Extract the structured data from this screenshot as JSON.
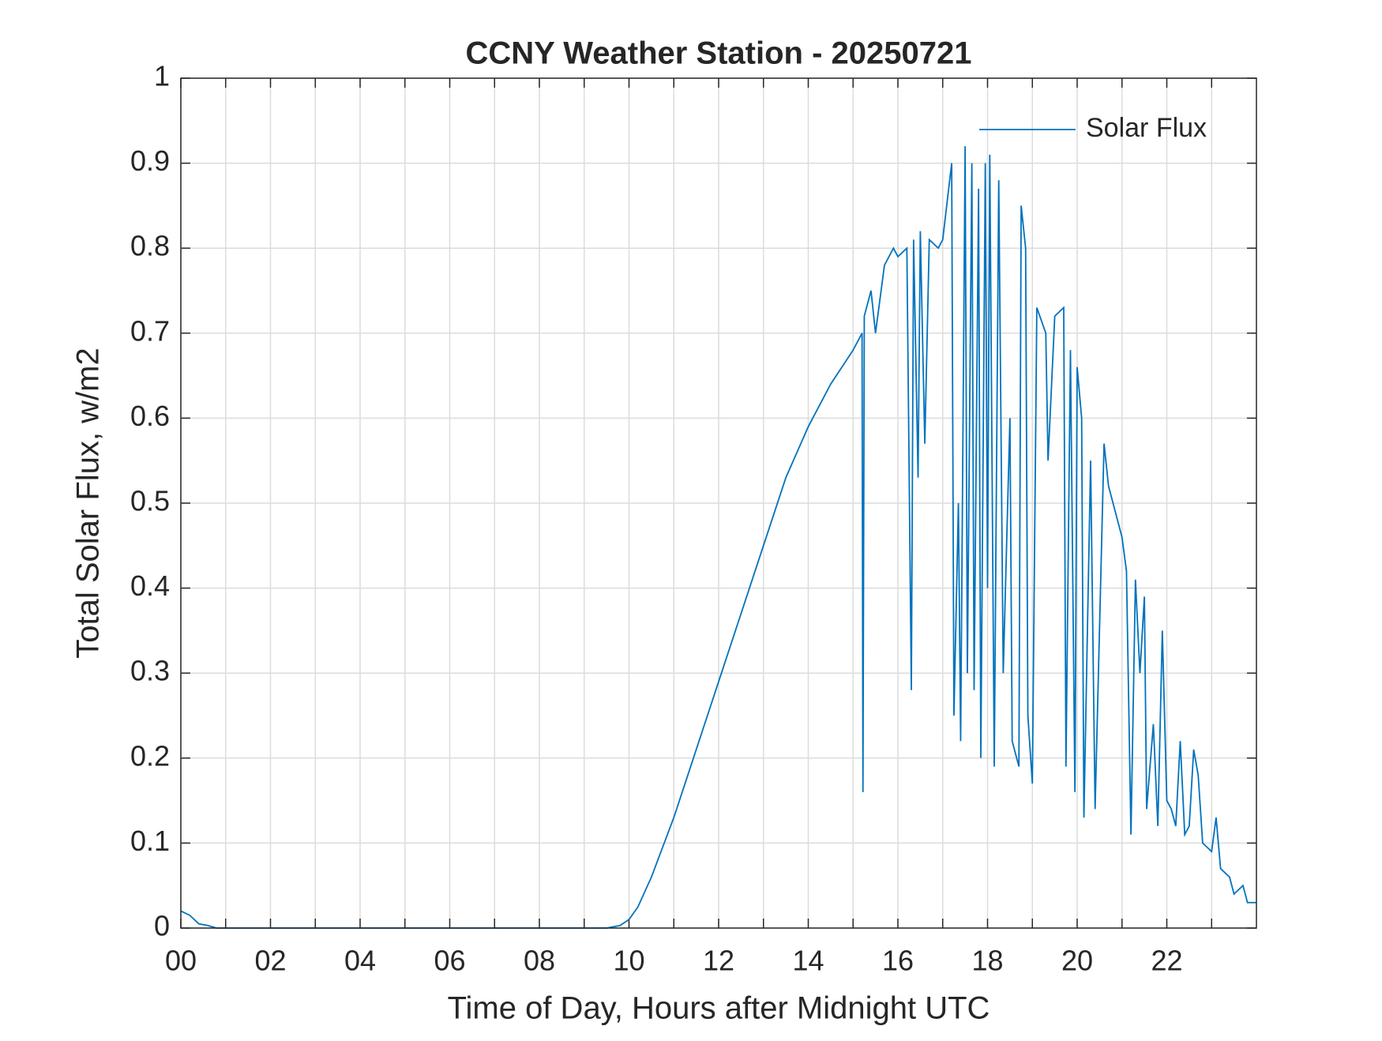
{
  "chart_data": {
    "type": "line",
    "title": "CCNY Weather Station - 20250721",
    "x_label": "Time of Day, Hours after Midnight UTC",
    "y_label": "Total Solar Flux, w/m2",
    "xlim": [
      0,
      24
    ],
    "xticks": [
      {
        "value": 0,
        "label": "00"
      },
      {
        "value": 2,
        "label": "02"
      },
      {
        "value": 4,
        "label": "04"
      },
      {
        "value": 6,
        "label": "06"
      },
      {
        "value": 8,
        "label": "08"
      },
      {
        "value": 10,
        "label": "10"
      },
      {
        "value": 12,
        "label": "12"
      },
      {
        "value": 14,
        "label": "14"
      },
      {
        "value": 16,
        "label": "16"
      },
      {
        "value": 18,
        "label": "18"
      },
      {
        "value": 20,
        "label": "20"
      },
      {
        "value": 22,
        "label": "22"
      }
    ],
    "xminorticks": [
      1,
      3,
      5,
      7,
      9,
      11,
      13,
      15,
      17,
      19,
      21,
      23
    ],
    "ylim": [
      0,
      1
    ],
    "yticks": [
      0,
      0.1,
      0.2,
      0.3,
      0.4,
      0.5,
      0.6,
      0.7,
      0.8,
      0.9,
      1
    ],
    "grid": true,
    "legend": "upper right",
    "series": [
      {
        "name": "Solar Flux",
        "color": "#0072bd",
        "x": [
          0,
          0.2,
          0.4,
          0.6,
          0.8,
          1,
          9.5,
          9.8,
          10,
          10.2,
          10.5,
          11,
          11.5,
          12,
          12.5,
          13,
          13.5,
          14,
          14.5,
          15,
          15.2,
          15.22,
          15.25,
          15.4,
          15.5,
          15.7,
          15.9,
          16,
          16.2,
          16.3,
          16.35,
          16.45,
          16.5,
          16.6,
          16.7,
          16.9,
          17,
          17.2,
          17.25,
          17.35,
          17.4,
          17.5,
          17.55,
          17.65,
          17.7,
          17.8,
          17.85,
          17.95,
          18,
          18.05,
          18.15,
          18.25,
          18.35,
          18.5,
          18.55,
          18.7,
          18.75,
          18.85,
          18.9,
          19,
          19.1,
          19.3,
          19.35,
          19.5,
          19.7,
          19.75,
          19.85,
          19.95,
          20,
          20.1,
          20.15,
          20.3,
          20.4,
          20.6,
          20.7,
          20.9,
          21,
          21.1,
          21.2,
          21.3,
          21.4,
          21.5,
          21.55,
          21.7,
          21.8,
          21.9,
          22,
          22.1,
          22.2,
          22.3,
          22.4,
          22.5,
          22.6,
          22.7,
          22.8,
          23,
          23.1,
          23.2,
          23.4,
          23.5,
          23.7,
          23.8,
          24
        ],
        "values": [
          0.02,
          0.015,
          0.005,
          0.003,
          0,
          0,
          0,
          0.003,
          0.01,
          0.025,
          0.06,
          0.13,
          0.21,
          0.29,
          0.37,
          0.45,
          0.53,
          0.59,
          0.64,
          0.68,
          0.7,
          0.16,
          0.72,
          0.75,
          0.7,
          0.78,
          0.8,
          0.79,
          0.8,
          0.28,
          0.81,
          0.53,
          0.82,
          0.57,
          0.81,
          0.8,
          0.81,
          0.9,
          0.25,
          0.5,
          0.22,
          0.92,
          0.3,
          0.9,
          0.28,
          0.87,
          0.2,
          0.9,
          0.4,
          0.91,
          0.19,
          0.88,
          0.3,
          0.6,
          0.22,
          0.19,
          0.85,
          0.8,
          0.25,
          0.17,
          0.73,
          0.7,
          0.55,
          0.72,
          0.73,
          0.19,
          0.68,
          0.16,
          0.66,
          0.6,
          0.13,
          0.55,
          0.14,
          0.57,
          0.52,
          0.48,
          0.46,
          0.42,
          0.11,
          0.41,
          0.3,
          0.39,
          0.14,
          0.24,
          0.12,
          0.35,
          0.15,
          0.14,
          0.12,
          0.22,
          0.11,
          0.12,
          0.21,
          0.18,
          0.1,
          0.09,
          0.13,
          0.07,
          0.06,
          0.04,
          0.05,
          0.03,
          0.03
        ]
      }
    ]
  }
}
